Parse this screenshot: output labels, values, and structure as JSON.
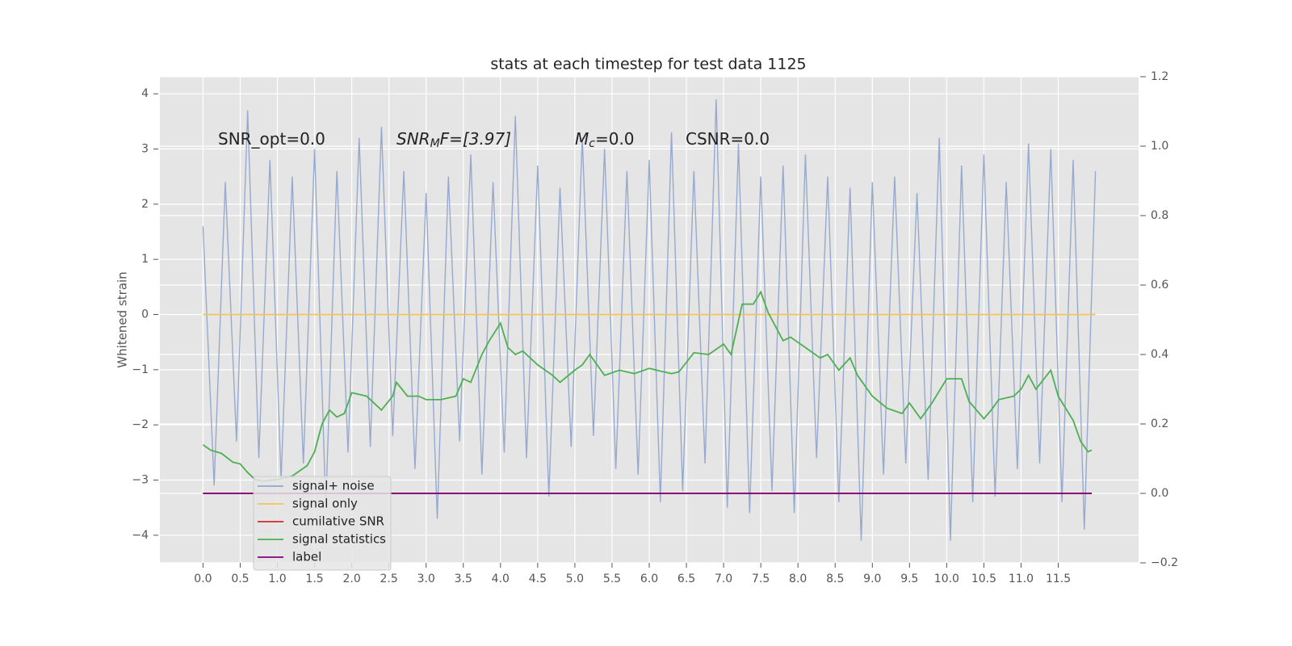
{
  "chart_data": {
    "type": "line",
    "title": "stats at each timestep for test data 1125",
    "ylabel": "Whitened strain",
    "annotations": [
      [
        "SNR_opt=0.0"
      ],
      [
        "SNR",
        "M",
        "F=[3.97]"
      ],
      [
        "M",
        "c",
        "=0.0"
      ],
      [
        "CSNR=0.0"
      ]
    ],
    "xlim": [
      -0.58,
      12.58
    ],
    "ylim": [
      -4.5,
      4.31
    ],
    "y2lim": [
      -0.2,
      1.2
    ],
    "xticks": [
      {
        "value": 0,
        "label": "0.0"
      },
      {
        "value": 0.5,
        "label": "0.5"
      },
      {
        "value": 1,
        "label": "1.0"
      },
      {
        "value": 1.5,
        "label": "1.5"
      },
      {
        "value": 2,
        "label": "2.0"
      },
      {
        "value": 2.5,
        "label": "2.5"
      },
      {
        "value": 3,
        "label": "3.0"
      },
      {
        "value": 3.5,
        "label": "3.5"
      },
      {
        "value": 4,
        "label": "4.0"
      },
      {
        "value": 4.5,
        "label": "4.5"
      },
      {
        "value": 5,
        "label": "5.0"
      },
      {
        "value": 5.5,
        "label": "5.5"
      },
      {
        "value": 6,
        "label": "6.0"
      },
      {
        "value": 6.5,
        "label": "6.5"
      },
      {
        "value": 7,
        "label": "7.0"
      },
      {
        "value": 7.5,
        "label": "7.5"
      },
      {
        "value": 8,
        "label": "8.0"
      },
      {
        "value": 8.5,
        "label": "8.5"
      },
      {
        "value": 9,
        "label": "9.0"
      },
      {
        "value": 9.5,
        "label": "9.5"
      },
      {
        "value": 10,
        "label": "10.0"
      },
      {
        "value": 10.5,
        "label": "10.5"
      },
      {
        "value": 11,
        "label": "11.0"
      },
      {
        "value": 11.5,
        "label": "11.5"
      }
    ],
    "yticks": [
      {
        "value": -4,
        "label": "−4"
      },
      {
        "value": -3,
        "label": "−3"
      },
      {
        "value": -2,
        "label": "−2"
      },
      {
        "value": -1,
        "label": "−1"
      },
      0,
      1,
      2,
      3,
      4
    ],
    "y2ticks": [
      {
        "value": -0.2,
        "label": "−0.2"
      },
      {
        "value": 0,
        "label": "0.0"
      },
      0.2,
      0.4,
      0.6,
      0.8,
      {
        "value": 1,
        "label": "1.0"
      },
      1.2
    ],
    "grid": true,
    "legend": "lower left",
    "series": [
      {
        "name": "signal+ noise",
        "color": "#92a6cc",
        "axis": "y",
        "x": [
          0,
          0.15,
          0.3,
          0.45,
          0.6,
          0.75,
          0.9,
          1.05,
          1.2,
          1.35,
          1.5,
          1.65,
          1.8,
          1.95,
          2.1,
          2.25,
          2.4,
          2.55,
          2.7,
          2.85,
          3.0,
          3.15,
          3.3,
          3.45,
          3.6,
          3.75,
          3.9,
          4.05,
          4.2,
          4.35,
          4.5,
          4.65,
          4.8,
          4.95,
          5.1,
          5.25,
          5.4,
          5.55,
          5.7,
          5.85,
          6.0,
          6.15,
          6.3,
          6.45,
          6.6,
          6.75,
          6.9,
          7.05,
          7.2,
          7.35,
          7.5,
          7.65,
          7.8,
          7.95,
          8.1,
          8.25,
          8.4,
          8.55,
          8.7,
          8.85,
          9.0,
          9.15,
          9.3,
          9.45,
          9.6,
          9.75,
          9.9,
          10.05,
          10.2,
          10.35,
          10.5,
          10.65,
          10.8,
          10.95,
          11.1,
          11.25,
          11.4,
          11.55,
          11.7,
          11.85,
          12.0
        ],
        "values": [
          1.6,
          -3.1,
          2.4,
          -2.3,
          3.7,
          -2.6,
          2.8,
          -3.0,
          2.5,
          -2.7,
          3.0,
          -3.5,
          2.6,
          -2.5,
          3.2,
          -2.4,
          3.4,
          -2.2,
          2.6,
          -2.8,
          2.2,
          -3.7,
          2.5,
          -2.3,
          2.9,
          -2.9,
          2.4,
          -2.5,
          3.6,
          -2.6,
          2.7,
          -3.3,
          2.3,
          -2.4,
          3.2,
          -2.2,
          3.0,
          -2.8,
          2.6,
          -2.9,
          2.8,
          -3.4,
          3.3,
          -3.2,
          2.6,
          -2.7,
          3.9,
          -3.5,
          3.1,
          -3.6,
          2.5,
          -3.2,
          2.7,
          -3.6,
          2.9,
          -2.6,
          2.5,
          -3.4,
          2.3,
          -4.1,
          2.4,
          -2.9,
          2.5,
          -2.7,
          2.2,
          -3.0,
          3.2,
          -4.1,
          2.7,
          -3.4,
          2.9,
          -3.3,
          2.4,
          -2.8,
          3.1,
          -2.7,
          3.0,
          -3.4,
          2.8,
          -3.9,
          2.6
        ]
      },
      {
        "name": "signal only",
        "color": "#f2c35a",
        "axis": "y",
        "x": [
          0,
          12.0
        ],
        "values": [
          0,
          0
        ]
      },
      {
        "name": "cumilative SNR",
        "color": "#d62728",
        "axis": "y2",
        "x": [
          0,
          11.95
        ],
        "values": [
          0,
          0
        ]
      },
      {
        "name": "signal statistics",
        "color": "#4caf50",
        "axis": "y2",
        "x": [
          0,
          0.1,
          0.25,
          0.4,
          0.5,
          0.6,
          0.7,
          0.8,
          1.0,
          1.2,
          1.4,
          1.5,
          1.6,
          1.7,
          1.8,
          1.9,
          2.0,
          2.2,
          2.4,
          2.55,
          2.6,
          2.75,
          2.9,
          3.0,
          3.2,
          3.4,
          3.5,
          3.6,
          3.75,
          3.85,
          4.0,
          4.1,
          4.2,
          4.3,
          4.5,
          4.7,
          4.8,
          5.0,
          5.1,
          5.2,
          5.4,
          5.6,
          5.8,
          6.0,
          6.3,
          6.4,
          6.6,
          6.8,
          7.0,
          7.1,
          7.25,
          7.4,
          7.5,
          7.6,
          7.8,
          7.9,
          8.1,
          8.3,
          8.4,
          8.55,
          8.7,
          8.8,
          9.0,
          9.2,
          9.4,
          9.5,
          9.65,
          9.8,
          10.0,
          10.2,
          10.3,
          10.5,
          10.6,
          10.7,
          10.9,
          11.0,
          11.1,
          11.2,
          11.4,
          11.5,
          11.7,
          11.8,
          11.9,
          11.95
        ],
        "values": [
          0.14,
          0.125,
          0.115,
          0.09,
          0.085,
          0.06,
          0.04,
          0.035,
          0.04,
          0.05,
          0.08,
          0.12,
          0.2,
          0.24,
          0.22,
          0.23,
          0.29,
          0.28,
          0.24,
          0.28,
          0.32,
          0.28,
          0.28,
          0.27,
          0.27,
          0.28,
          0.33,
          0.32,
          0.4,
          0.44,
          0.49,
          0.42,
          0.4,
          0.41,
          0.37,
          0.34,
          0.32,
          0.355,
          0.37,
          0.4,
          0.34,
          0.355,
          0.345,
          0.36,
          0.345,
          0.35,
          0.405,
          0.4,
          0.43,
          0.4,
          0.545,
          0.545,
          0.58,
          0.52,
          0.44,
          0.45,
          0.42,
          0.39,
          0.4,
          0.355,
          0.39,
          0.34,
          0.28,
          0.245,
          0.23,
          0.26,
          0.215,
          0.26,
          0.33,
          0.33,
          0.265,
          0.215,
          0.24,
          0.27,
          0.28,
          0.3,
          0.34,
          0.3,
          0.355,
          0.28,
          0.21,
          0.15,
          0.12,
          0.125
        ]
      },
      {
        "name": "label",
        "color": "#800080",
        "axis": "y2",
        "x": [
          0,
          11.95
        ],
        "values": [
          0,
          0
        ]
      }
    ]
  }
}
